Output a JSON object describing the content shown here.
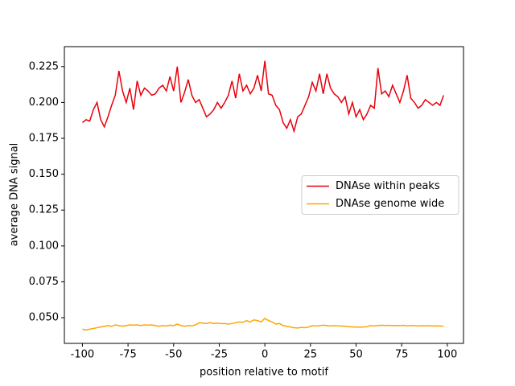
{
  "chart_data": {
    "type": "line",
    "xlabel": "position relative to motif",
    "ylabel": "average DNA signal",
    "x": [
      -100,
      -98,
      -96,
      -94,
      -92,
      -90,
      -88,
      -86,
      -84,
      -82,
      -80,
      -78,
      -76,
      -74,
      -72,
      -70,
      -68,
      -66,
      -64,
      -62,
      -60,
      -58,
      -56,
      -54,
      -52,
      -50,
      -48,
      -46,
      -44,
      -42,
      -40,
      -38,
      -36,
      -34,
      -32,
      -30,
      -28,
      -26,
      -24,
      -22,
      -20,
      -18,
      -16,
      -14,
      -12,
      -10,
      -8,
      -6,
      -4,
      -2,
      0,
      2,
      4,
      6,
      8,
      10,
      12,
      14,
      16,
      18,
      20,
      22,
      24,
      26,
      28,
      30,
      32,
      34,
      36,
      38,
      40,
      42,
      44,
      46,
      48,
      50,
      52,
      54,
      56,
      58,
      60,
      62,
      64,
      66,
      68,
      70,
      72,
      74,
      76,
      78,
      80,
      82,
      84,
      86,
      88,
      90,
      92,
      94,
      96,
      98
    ],
    "series": [
      {
        "name": "DNAse within peaks",
        "color": "#e8000b",
        "values": [
          0.186,
          0.188,
          0.187,
          0.195,
          0.2,
          0.188,
          0.183,
          0.19,
          0.198,
          0.205,
          0.222,
          0.208,
          0.2,
          0.21,
          0.195,
          0.215,
          0.205,
          0.21,
          0.208,
          0.205,
          0.206,
          0.21,
          0.212,
          0.208,
          0.218,
          0.208,
          0.225,
          0.2,
          0.207,
          0.216,
          0.205,
          0.2,
          0.202,
          0.196,
          0.19,
          0.192,
          0.195,
          0.2,
          0.196,
          0.2,
          0.205,
          0.215,
          0.203,
          0.22,
          0.208,
          0.212,
          0.206,
          0.21,
          0.219,
          0.208,
          0.229,
          0.206,
          0.205,
          0.198,
          0.195,
          0.186,
          0.182,
          0.188,
          0.18,
          0.19,
          0.192,
          0.198,
          0.204,
          0.214,
          0.208,
          0.22,
          0.206,
          0.22,
          0.21,
          0.206,
          0.204,
          0.2,
          0.204,
          0.192,
          0.2,
          0.19,
          0.195,
          0.188,
          0.192,
          0.198,
          0.196,
          0.224,
          0.206,
          0.208,
          0.204,
          0.212,
          0.206,
          0.2,
          0.208,
          0.219,
          0.203,
          0.2,
          0.196,
          0.198,
          0.202,
          0.2,
          0.198,
          0.2,
          0.198,
          0.205
        ]
      },
      {
        "name": "DNAse genome wide",
        "color": "#ffa500",
        "values": [
          0.042,
          0.0415,
          0.042,
          0.0425,
          0.043,
          0.0435,
          0.044,
          0.0445,
          0.044,
          0.045,
          0.0445,
          0.044,
          0.0445,
          0.045,
          0.0448,
          0.045,
          0.0445,
          0.045,
          0.0448,
          0.045,
          0.0445,
          0.044,
          0.0445,
          0.0443,
          0.0448,
          0.0445,
          0.0455,
          0.0445,
          0.044,
          0.0445,
          0.0443,
          0.045,
          0.0465,
          0.0462,
          0.046,
          0.0465,
          0.046,
          0.0462,
          0.0458,
          0.046,
          0.0455,
          0.046,
          0.0465,
          0.047,
          0.0468,
          0.048,
          0.047,
          0.0485,
          0.048,
          0.047,
          0.0495,
          0.048,
          0.047,
          0.0455,
          0.046,
          0.0445,
          0.044,
          0.0435,
          0.043,
          0.0428,
          0.0432,
          0.043,
          0.0435,
          0.0445,
          0.0442,
          0.0445,
          0.0448,
          0.0445,
          0.0442,
          0.0445,
          0.0443,
          0.0442,
          0.044,
          0.0438,
          0.0435,
          0.0436,
          0.0434,
          0.0435,
          0.0437,
          0.0445,
          0.0443,
          0.0446,
          0.0448,
          0.0445,
          0.0447,
          0.0444,
          0.0446,
          0.0445,
          0.0447,
          0.0443,
          0.0446,
          0.0444,
          0.0442,
          0.0444,
          0.0443,
          0.0445,
          0.0442,
          0.0443,
          0.0442,
          0.0441
        ]
      }
    ],
    "xlim": [
      -109.9,
      108.9
    ],
    "ylim": [
      0.0321,
      0.2389
    ],
    "xticks": [
      -100,
      -75,
      -50,
      -25,
      0,
      25,
      50,
      75,
      100
    ],
    "yticks": [
      {
        "value": 0.05,
        "label": "0.050"
      },
      {
        "value": 0.075,
        "label": "0.075"
      },
      {
        "value": 0.1,
        "label": "0.100"
      },
      {
        "value": 0.125,
        "label": "0.125"
      },
      {
        "value": 0.15,
        "label": "0.150"
      },
      {
        "value": 0.175,
        "label": "0.175"
      },
      {
        "value": 0.2,
        "label": "0.200"
      },
      {
        "value": 0.225,
        "label": "0.225"
      }
    ],
    "legend": "center right"
  }
}
